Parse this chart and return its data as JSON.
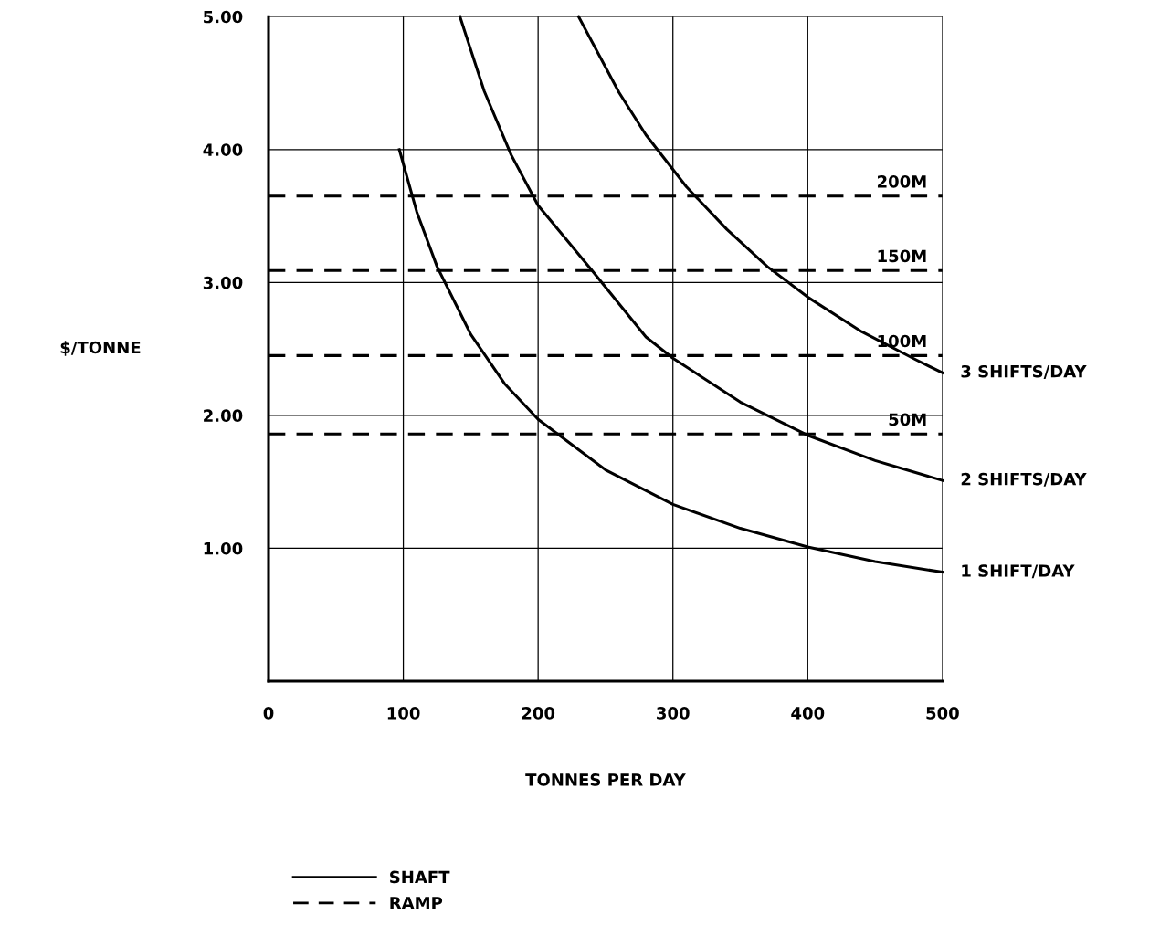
{
  "chart_data": {
    "type": "line",
    "xlabel": "TONNES PER DAY",
    "ylabel": "$/TONNE",
    "xlim": [
      0,
      500
    ],
    "xticks": [
      0,
      100,
      200,
      300,
      400,
      500
    ],
    "ylim": [
      0,
      5
    ],
    "yticks": [
      {
        "value": 1,
        "label": "1.00"
      },
      {
        "value": 2,
        "label": "2.00"
      },
      {
        "value": 3,
        "label": "3.00"
      },
      {
        "value": 4,
        "label": "4.00"
      },
      {
        "value": 5,
        "label": "5.00"
      }
    ],
    "grid": true,
    "legend": "bottom",
    "line_style": "solid",
    "marker": "none",
    "series": [
      {
        "name": "1 SHIFT/DAY",
        "color": "#000000",
        "x": [
          97,
          110,
          125,
          150,
          175,
          200,
          250,
          300,
          350,
          400,
          450,
          500
        ],
        "values": [
          4.0,
          3.53,
          3.12,
          2.61,
          2.24,
          1.97,
          1.59,
          1.33,
          1.15,
          1.01,
          0.9,
          0.82
        ]
      },
      {
        "name": "2 SHIFTS/DAY",
        "color": "#000000",
        "x": [
          142,
          160,
          180,
          200,
          240,
          280,
          300,
          350,
          400,
          450,
          500
        ],
        "values": [
          5.0,
          4.44,
          3.96,
          3.58,
          3.09,
          2.59,
          2.43,
          2.1,
          1.85,
          1.66,
          1.51
        ]
      },
      {
        "name": "3 SHIFTS/DAY",
        "color": "#000000",
        "x": [
          230,
          260,
          280,
          310,
          340,
          370,
          400,
          440,
          480,
          500
        ],
        "values": [
          5.0,
          4.43,
          4.11,
          3.72,
          3.4,
          3.12,
          2.89,
          2.63,
          2.42,
          2.32
        ]
      }
    ],
    "ref_lines": [
      {
        "axis": "y",
        "value": 3.65,
        "label": "200M",
        "color": "#000000",
        "line_style": "dashed"
      },
      {
        "axis": "y",
        "value": 3.09,
        "label": "150M",
        "color": "#000000",
        "line_style": "dashed"
      },
      {
        "axis": "y",
        "value": 2.45,
        "label": "100M",
        "color": "#000000",
        "line_style": "dashed"
      },
      {
        "axis": "y",
        "value": 1.86,
        "label": "50M",
        "color": "#000000",
        "line_style": "dashed"
      }
    ],
    "annotations": [
      "SHAFT",
      "RAMP"
    ]
  }
}
